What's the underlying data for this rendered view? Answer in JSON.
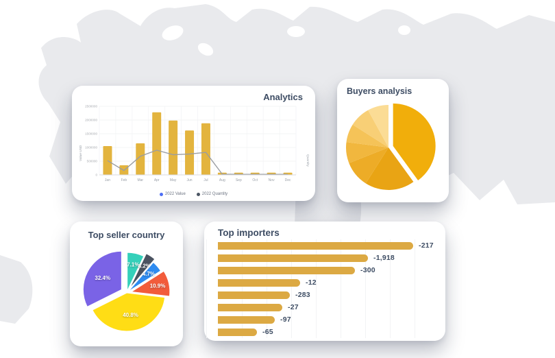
{
  "page": {
    "background": "#FFFFFF",
    "map_fill": "#E9EAED"
  },
  "cards": {
    "analytics": {
      "title": "Analytics"
    },
    "buyers": {
      "title": "Buyers analysis"
    },
    "sellers": {
      "title": "Top seller country"
    },
    "importers": {
      "title": "Top importers"
    }
  },
  "chart_data": [
    {
      "id": "analytics",
      "type": "bar",
      "title": "Analytics",
      "categories": [
        "Jan",
        "Feb",
        "Mar",
        "Apr",
        "May",
        "Jun",
        "Jul",
        "Aug",
        "Sep",
        "Oct",
        "Nov",
        "Dec"
      ],
      "series": [
        {
          "name": "2022 Value",
          "type": "bar",
          "axis": "left",
          "color": "#E3B43E",
          "values": [
            1050000,
            350000,
            1150000,
            2280000,
            1980000,
            1620000,
            1880000,
            80000,
            80000,
            80000,
            80000,
            80000
          ]
        },
        {
          "name": "2022 Quantity",
          "type": "line",
          "axis": "right",
          "color": "#9A9DA2",
          "values": [
            520000,
            160000,
            680000,
            900000,
            735000,
            760000,
            820000,
            25000,
            20000,
            20000,
            20000,
            20000
          ]
        }
      ],
      "ylabel": "Value USD",
      "ylabel_right": "Quantity",
      "ylim": [
        0,
        2500000
      ],
      "yticks": [
        0,
        500000,
        1000000,
        1500000,
        2000000,
        2500000
      ],
      "grid": true,
      "legend_position": "bottom",
      "legend": [
        {
          "label": "2022 Value",
          "color": "#4C6EF5"
        },
        {
          "label": "2022 Quantity",
          "color": "#4B5563"
        }
      ]
    },
    {
      "id": "buyers",
      "type": "pie",
      "title": "Buyers analysis",
      "slices": [
        {
          "value": 40,
          "color": "#F1AE0B",
          "explode": 7
        },
        {
          "value": 19,
          "color": "#E9A414",
          "explode": 0
        },
        {
          "value": 10,
          "color": "#EDAC27",
          "explode": 0
        },
        {
          "value": 8,
          "color": "#F1B73E",
          "explode": 0
        },
        {
          "value": 7,
          "color": "#F5C358",
          "explode": 0
        },
        {
          "value": 8,
          "color": "#F8CF76",
          "explode": 0
        },
        {
          "value": 8,
          "color": "#FBDC95",
          "explode": 0
        }
      ]
    },
    {
      "id": "sellers",
      "type": "pie",
      "title": "Top seller country",
      "slices": [
        {
          "label": "7.1%",
          "value": 7.1,
          "color": "#35D0BA",
          "explode": 3
        },
        {
          "label": "4.2%",
          "value": 4.2,
          "color": "#4A5260",
          "explode": 8
        },
        {
          "label": "4.7%",
          "value": 4.7,
          "color": "#2E8BF0",
          "explode": 3
        },
        {
          "label": "10.9%",
          "value": 10.9,
          "color": "#F25C3B",
          "explode": 7
        },
        {
          "label": "40.8%",
          "value": 40.8,
          "color": "#FFDD15",
          "explode": 0
        },
        {
          "label": "32.4%",
          "value": 32.4,
          "color": "#7A63E6",
          "explode": 9
        }
      ]
    },
    {
      "id": "importers",
      "type": "hbar",
      "title": "Top importers",
      "bar_color": "#DCA943",
      "bars": [
        {
          "label": "-217",
          "length_pct": 100
        },
        {
          "label": "-1,918",
          "length_pct": 77
        },
        {
          "label": "-300",
          "length_pct": 70
        },
        {
          "label": "-12",
          "length_pct": 42
        },
        {
          "label": "-283",
          "length_pct": 37
        },
        {
          "label": "-27",
          "length_pct": 33
        },
        {
          "label": "-97",
          "length_pct": 29
        },
        {
          "label": "-65",
          "length_pct": 20
        }
      ]
    }
  ]
}
